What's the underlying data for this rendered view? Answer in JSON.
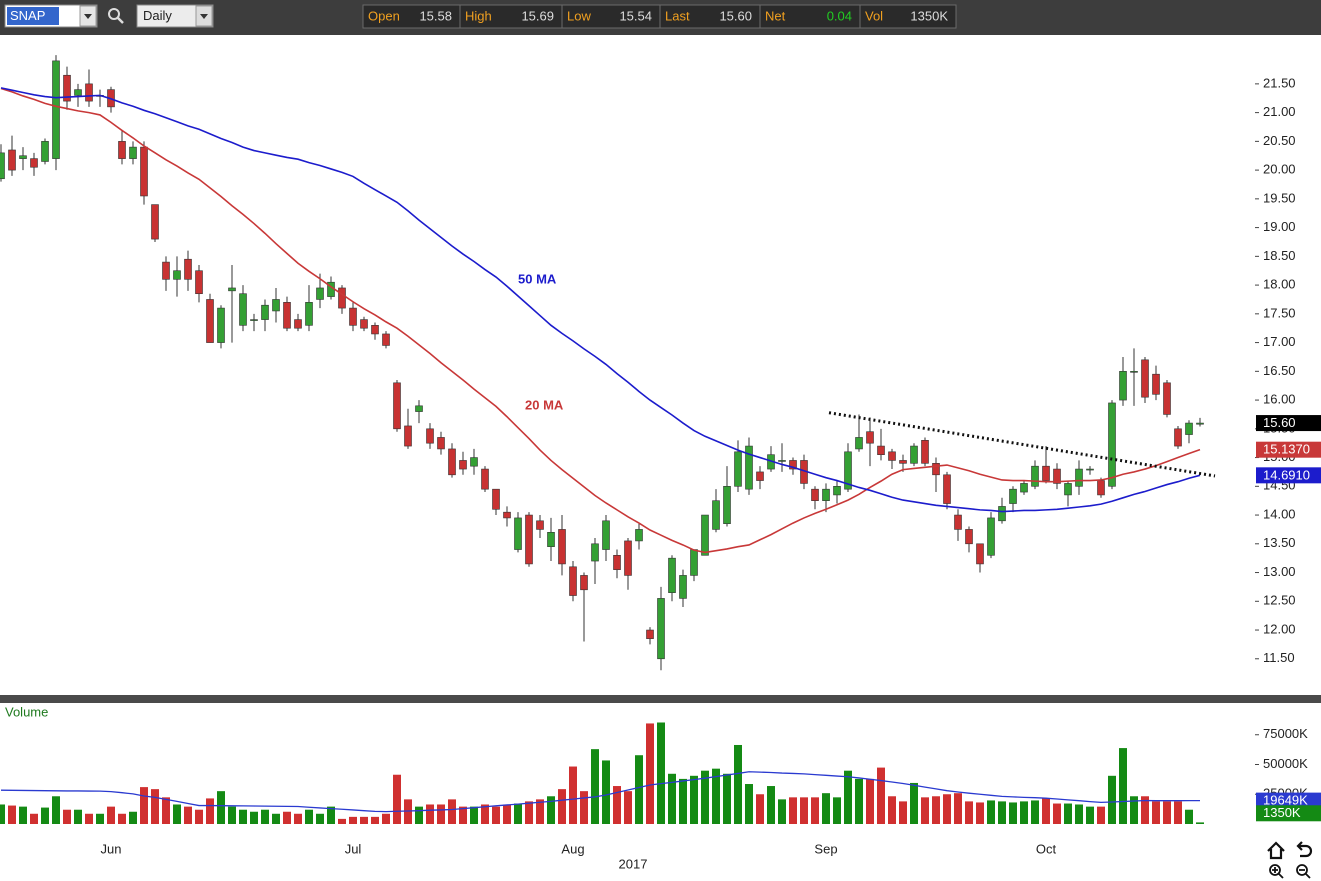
{
  "toolbar": {
    "symbol": "SNAP",
    "interval": "Daily",
    "quote": [
      {
        "label": "Open",
        "value": "15.58"
      },
      {
        "label": "High",
        "value": "15.69"
      },
      {
        "label": "Low",
        "value": "15.54"
      },
      {
        "label": "Last",
        "value": "15.60"
      },
      {
        "label": "Net",
        "value": "0.04",
        "color": "#22cc22"
      },
      {
        "label": "Vol",
        "value": "1350K"
      }
    ]
  },
  "chart_data": [
    {
      "type": "candlestick",
      "categories": [
        null,
        null,
        null,
        null,
        null,
        null,
        null,
        null,
        null,
        null,
        "Jun",
        null,
        null,
        null,
        null,
        null,
        null,
        null,
        null,
        null,
        null,
        null,
        null,
        null,
        null,
        null,
        null,
        null,
        null,
        null,
        null,
        null,
        "Jul",
        null,
        null,
        null,
        null,
        null,
        null,
        null,
        null,
        null,
        null,
        null,
        null,
        null,
        null,
        null,
        null,
        null,
        null,
        null,
        "Aug",
        null,
        null,
        null,
        null,
        null,
        null,
        null,
        null,
        null,
        null,
        null,
        null,
        null,
        null,
        null,
        null,
        null,
        null,
        null,
        null,
        null,
        null,
        "Sep",
        null,
        null,
        null,
        null,
        null,
        null,
        null,
        null,
        null,
        null,
        null,
        null,
        null,
        null,
        null,
        null,
        null,
        null,
        null,
        "Oct",
        null,
        null,
        null,
        null,
        null,
        null,
        null,
        null,
        null,
        null,
        null,
        null,
        null,
        null
      ],
      "xlabel": "2017",
      "open": [
        19.85,
        20.35,
        20.2,
        20.2,
        20.15,
        20.2,
        21.65,
        21.3,
        21.5,
        21.3,
        21.4,
        20.5,
        20.2,
        20.4,
        19.4,
        18.4,
        18.1,
        18.45,
        18.25,
        17.75,
        17.0,
        17.9,
        17.3,
        17.4,
        17.4,
        17.55,
        17.7,
        17.4,
        17.3,
        17.75,
        17.8,
        17.95,
        17.6,
        17.4,
        17.3,
        17.15,
        16.3,
        15.55,
        15.8,
        15.5,
        15.35,
        15.15,
        14.95,
        14.85,
        14.8,
        14.45,
        14.05,
        13.4,
        14.0,
        13.9,
        13.45,
        13.75,
        13.1,
        12.95,
        13.2,
        13.4,
        13.3,
        13.55,
        13.55,
        12.0,
        11.5,
        12.65,
        12.55,
        12.95,
        13.3,
        13.75,
        13.85,
        14.5,
        14.45,
        14.75,
        14.8,
        14.95,
        14.95,
        14.95,
        14.45,
        14.25,
        14.35,
        14.45,
        15.15,
        15.45,
        15.2,
        15.1,
        14.95,
        14.9,
        15.3,
        14.9,
        14.7,
        14.0,
        13.75,
        13.5,
        13.3,
        13.9,
        14.2,
        14.4,
        14.5,
        14.85,
        14.8,
        14.35,
        14.5,
        14.8,
        14.6,
        14.5,
        16.0,
        16.5,
        16.7,
        16.45,
        16.3,
        15.5,
        15.4,
        15.58
      ],
      "high": [
        20.45,
        20.6,
        20.4,
        20.3,
        20.55,
        22.0,
        21.8,
        21.5,
        21.75,
        21.4,
        21.45,
        20.7,
        20.5,
        20.5,
        19.4,
        18.5,
        18.5,
        18.6,
        18.35,
        17.85,
        17.65,
        18.35,
        18.0,
        17.5,
        17.75,
        17.95,
        17.8,
        17.5,
        18.0,
        18.2,
        18.15,
        18.0,
        17.7,
        17.45,
        17.35,
        17.2,
        16.35,
        15.85,
        16.0,
        15.6,
        15.45,
        15.25,
        15.1,
        15.15,
        14.85,
        14.45,
        14.15,
        14.05,
        14.05,
        14.0,
        13.95,
        14.0,
        13.2,
        13.0,
        13.6,
        14.0,
        13.4,
        13.6,
        13.85,
        12.05,
        12.75,
        13.3,
        13.05,
        13.4,
        14.0,
        14.45,
        14.85,
        15.3,
        15.35,
        14.85,
        15.2,
        15.25,
        15.0,
        15.05,
        14.5,
        14.55,
        14.6,
        15.25,
        15.75,
        15.7,
        15.5,
        15.15,
        15.05,
        15.25,
        15.35,
        15.0,
        14.75,
        14.1,
        13.8,
        13.5,
        14.05,
        14.3,
        14.5,
        14.6,
        14.95,
        15.2,
        14.9,
        14.6,
        14.95,
        14.85,
        14.65,
        16.0,
        16.75,
        16.9,
        16.75,
        16.6,
        16.35,
        15.55,
        15.65,
        15.69
      ],
      "low": [
        19.8,
        19.9,
        20.0,
        19.9,
        20.1,
        20.0,
        21.05,
        21.1,
        21.1,
        21.1,
        21.0,
        20.1,
        20.1,
        19.4,
        18.75,
        17.9,
        17.8,
        17.9,
        17.7,
        17.0,
        16.9,
        17.0,
        17.2,
        17.2,
        17.2,
        17.35,
        17.2,
        17.2,
        17.2,
        17.6,
        17.75,
        17.5,
        17.2,
        17.2,
        17.05,
        16.9,
        15.45,
        15.15,
        15.6,
        15.15,
        15.05,
        14.65,
        14.7,
        14.7,
        14.4,
        14.0,
        13.8,
        13.35,
        13.1,
        13.6,
        13.2,
        12.95,
        12.5,
        11.8,
        12.8,
        13.2,
        12.9,
        12.7,
        13.4,
        11.75,
        11.3,
        12.5,
        12.4,
        12.85,
        13.3,
        13.7,
        13.8,
        14.4,
        14.35,
        14.45,
        14.75,
        14.75,
        14.7,
        14.45,
        14.1,
        14.05,
        14.2,
        14.4,
        15.1,
        14.85,
        14.95,
        14.8,
        14.75,
        14.85,
        14.85,
        14.4,
        14.1,
        13.55,
        13.35,
        13.0,
        13.25,
        13.85,
        14.05,
        14.35,
        14.45,
        14.55,
        14.45,
        14.15,
        14.35,
        14.7,
        14.3,
        14.45,
        15.9,
        15.9,
        15.95,
        16.0,
        15.7,
        15.15,
        15.25,
        15.54
      ],
      "close": [
        20.3,
        20.0,
        20.25,
        20.05,
        20.5,
        21.9,
        21.2,
        21.4,
        21.2,
        21.3,
        21.1,
        20.2,
        20.4,
        19.55,
        18.8,
        18.1,
        18.25,
        18.1,
        17.85,
        17.0,
        17.6,
        17.95,
        17.85,
        17.4,
        17.65,
        17.75,
        17.25,
        17.25,
        17.7,
        17.95,
        18.05,
        17.6,
        17.3,
        17.25,
        17.15,
        16.95,
        15.5,
        15.2,
        15.9,
        15.25,
        15.15,
        14.7,
        14.8,
        15.0,
        14.45,
        14.1,
        13.95,
        13.95,
        13.15,
        13.75,
        13.7,
        13.15,
        12.6,
        12.7,
        13.5,
        13.9,
        13.05,
        12.95,
        13.75,
        11.85,
        12.55,
        13.25,
        12.95,
        13.4,
        14.0,
        14.25,
        14.5,
        15.1,
        15.2,
        14.6,
        15.05,
        14.95,
        14.8,
        14.55,
        14.25,
        14.45,
        14.5,
        15.1,
        15.35,
        15.25,
        15.05,
        14.95,
        14.9,
        15.2,
        14.9,
        14.7,
        14.2,
        13.75,
        13.5,
        13.15,
        13.95,
        14.15,
        14.45,
        14.55,
        14.85,
        14.6,
        14.55,
        14.55,
        14.8,
        14.8,
        14.35,
        15.95,
        16.5,
        16.5,
        16.05,
        16.1,
        15.75,
        15.2,
        15.6,
        15.6
      ],
      "colors": {
        "up": "#34a034",
        "down": "#c83232"
      },
      "last_value_label": "15.60",
      "lines": [
        {
          "name": "20 MA",
          "color": "#c83838",
          "last_value_label": "15.1370",
          "values": [
            21.42,
            21.36,
            21.29,
            21.23,
            21.16,
            21.11,
            21.07,
            21.03,
            21.0,
            20.96,
            20.83,
            20.69,
            20.56,
            20.42,
            20.3,
            20.18,
            20.07,
            19.95,
            19.84,
            19.69,
            19.54,
            19.38,
            19.23,
            19.07,
            18.9,
            18.72,
            18.55,
            18.38,
            18.24,
            18.11,
            17.97,
            17.84,
            17.71,
            17.59,
            17.48,
            17.36,
            17.25,
            17.11,
            16.96,
            16.81,
            16.65,
            16.5,
            16.35,
            16.19,
            16.04,
            15.89,
            15.71,
            15.52,
            15.33,
            15.13,
            14.95,
            14.79,
            14.64,
            14.49,
            14.34,
            14.21,
            14.09,
            13.97,
            13.86,
            13.74,
            13.65,
            13.56,
            13.48,
            13.39,
            13.35,
            13.38,
            13.41,
            13.45,
            13.48,
            13.57,
            13.66,
            13.76,
            13.86,
            13.95,
            14.03,
            14.1,
            14.18,
            14.26,
            14.36,
            14.48,
            14.59,
            14.71,
            14.79,
            14.81,
            14.83,
            14.85,
            14.87,
            14.82,
            14.77,
            14.71,
            14.66,
            14.61,
            14.6,
            14.6,
            14.59,
            14.58,
            14.58,
            14.59,
            14.6,
            14.6,
            14.61,
            14.65,
            14.71,
            14.75,
            14.8,
            14.86,
            14.93,
            15.0,
            15.07,
            15.137
          ]
        },
        {
          "name": "50 MA",
          "color": "#1c1ccc",
          "last_value_label": "14.6910",
          "values": [
            21.43,
            21.39,
            21.35,
            21.31,
            21.28,
            21.26,
            21.27,
            21.28,
            21.29,
            21.3,
            21.24,
            21.17,
            21.11,
            21.04,
            20.98,
            20.91,
            20.84,
            20.77,
            20.71,
            20.63,
            20.55,
            20.48,
            20.4,
            20.34,
            20.3,
            20.26,
            20.22,
            20.19,
            20.13,
            20.08,
            20.02,
            19.96,
            19.89,
            19.77,
            19.66,
            19.55,
            19.44,
            19.29,
            19.13,
            18.98,
            18.83,
            18.68,
            18.54,
            18.41,
            18.27,
            18.14,
            17.98,
            17.81,
            17.64,
            17.47,
            17.3,
            17.16,
            17.03,
            16.89,
            16.76,
            16.62,
            16.46,
            16.31,
            16.15,
            16.0,
            15.87,
            15.74,
            15.6,
            15.47,
            15.37,
            15.29,
            15.21,
            15.13,
            15.06,
            15.0,
            14.94,
            14.88,
            14.83,
            14.77,
            14.71,
            14.65,
            14.6,
            14.54,
            14.48,
            14.43,
            14.37,
            14.31,
            14.26,
            14.23,
            14.2,
            14.17,
            14.15,
            14.13,
            14.11,
            14.09,
            14.08,
            14.06,
            14.07,
            14.08,
            14.08,
            14.09,
            14.1,
            14.12,
            14.14,
            14.16,
            14.19,
            14.24,
            14.3,
            14.36,
            14.41,
            14.47,
            14.53,
            14.58,
            14.64,
            14.691
          ]
        }
      ],
      "trendline": {
        "values": [
          15.78,
          14.68
        ],
        "color": "#111111"
      },
      "ylim": [
        10.87,
        22.35
      ],
      "yticks": [
        {
          "value": 11.5,
          "label": "11.50"
        },
        {
          "value": 12,
          "label": "12.00"
        },
        {
          "value": 12.5,
          "label": "12.50"
        },
        {
          "value": 13,
          "label": "13.00"
        },
        {
          "value": 13.5,
          "label": "13.50"
        },
        {
          "value": 14,
          "label": "14.00"
        },
        {
          "value": 14.5,
          "label": "14.50"
        },
        {
          "value": 15,
          "label": "15.00"
        },
        {
          "value": 15.5,
          "label": "15.50"
        },
        {
          "value": 16,
          "label": "16.00"
        },
        {
          "value": 16.5,
          "label": "16.50"
        },
        {
          "value": 17,
          "label": "17.00"
        },
        {
          "value": 17.5,
          "label": "17.50"
        },
        {
          "value": 18,
          "label": "18.00"
        },
        {
          "value": 18.5,
          "label": "18.50"
        },
        {
          "value": 19,
          "label": "19.00"
        },
        {
          "value": 19.5,
          "label": "19.50"
        },
        {
          "value": 20,
          "label": "20.00"
        },
        {
          "value": 20.5,
          "label": "20.50"
        },
        {
          "value": 21,
          "label": "21.00"
        },
        {
          "value": 21.5,
          "label": "21.50"
        }
      ]
    },
    {
      "type": "bar",
      "title": "Volume",
      "values": [
        16400,
        15500,
        14600,
        8600,
        13800,
        23300,
        12000,
        12000,
        8600,
        8600,
        14600,
        8600,
        10300,
        31000,
        29300,
        22400,
        16400,
        14600,
        12000,
        21500,
        27600,
        14600,
        12000,
        10300,
        12000,
        8600,
        10300,
        8600,
        12000,
        8600,
        14600,
        4300,
        6000,
        6000,
        6000,
        8600,
        41400,
        20700,
        14600,
        16400,
        16400,
        20700,
        14600,
        14600,
        16400,
        14600,
        16400,
        17200,
        19000,
        20700,
        23300,
        29300,
        48300,
        27600,
        62900,
        53400,
        31900,
        27600,
        57800,
        84500,
        85300,
        42200,
        37900,
        40500,
        44800,
        46500,
        42200,
        66400,
        33600,
        25000,
        31900,
        20700,
        22400,
        22400,
        22400,
        25900,
        22400,
        44800,
        37900,
        37900,
        47400,
        23300,
        19000,
        34500,
        22400,
        23300,
        25000,
        25900,
        19000,
        18100,
        19800,
        19000,
        18100,
        19000,
        19800,
        21500,
        17200,
        17200,
        16400,
        14600,
        14600,
        40500,
        63800,
        23300,
        23300,
        19000,
        19000,
        19000,
        12000,
        1350
      ],
      "colors": {
        "up": "#148a14",
        "down": "#d03030"
      },
      "last_value_label": "1350K",
      "lines": [
        {
          "color": "#2a3ad0",
          "last_value_label": "19649K",
          "values": [
            28400,
            28300,
            28200,
            28100,
            28000,
            27900,
            27800,
            27800,
            27700,
            27600,
            27200,
            26300,
            25300,
            23500,
            22400,
            20700,
            19000,
            17200,
            15500,
            15500,
            15400,
            15300,
            15200,
            15100,
            15000,
            14900,
            14800,
            14700,
            14100,
            13500,
            12900,
            12400,
            11800,
            11200,
            10600,
            10400,
            10700,
            10900,
            11200,
            11600,
            11800,
            12200,
            12900,
            13700,
            14500,
            15300,
            16000,
            16700,
            17500,
            18300,
            19000,
            20000,
            20900,
            21900,
            22800,
            24400,
            26500,
            28600,
            30700,
            32800,
            33900,
            35000,
            36200,
            37300,
            38500,
            39800,
            41200,
            42500,
            43900,
            43600,
            43300,
            42800,
            42500,
            42100,
            41500,
            40900,
            40300,
            39700,
            38700,
            37600,
            36500,
            35300,
            34000,
            32600,
            31000,
            29500,
            28000,
            26900,
            25900,
            25000,
            24100,
            23200,
            22800,
            22400,
            22100,
            21700,
            21000,
            20300,
            19600,
            18800,
            18200,
            18500,
            18900,
            19300,
            19700,
            19600,
            19600,
            19600,
            19650,
            19649
          ]
        }
      ],
      "ylim": [
        0,
        100000
      ],
      "yticks": [
        {
          "value": 25000,
          "label": "25000K"
        },
        {
          "value": 50000,
          "label": "50000K"
        },
        {
          "value": 75000,
          "label": "75000K"
        }
      ]
    }
  ]
}
